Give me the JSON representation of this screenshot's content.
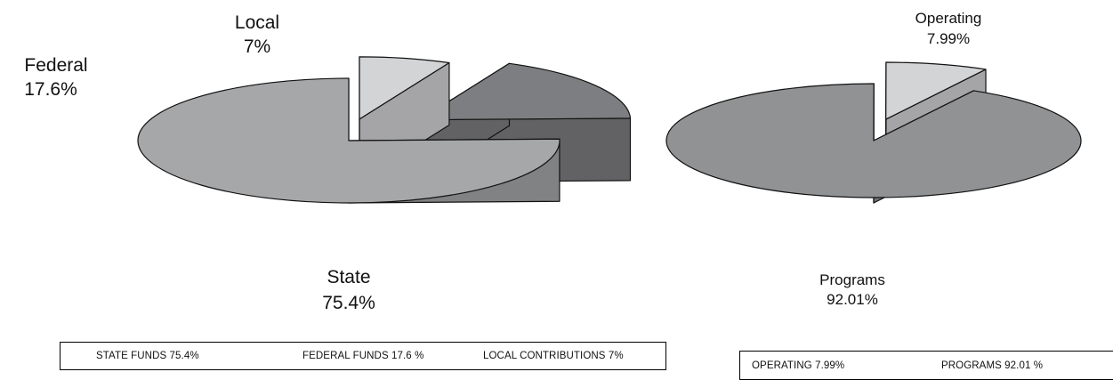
{
  "chart_data": [
    {
      "type": "pie",
      "style": "3d-exploded",
      "categories": [
        "State",
        "Federal",
        "Local"
      ],
      "values": [
        75.4,
        17.6,
        7
      ],
      "labels": [
        {
          "name": "State",
          "value": "75.4%"
        },
        {
          "name": "Federal",
          "value": "17.6%"
        },
        {
          "name": "Local",
          "value": "7%"
        }
      ],
      "legend": {
        "placement": "bottom",
        "items": [
          "STATE FUNDS 75.4%",
          "FEDERAL FUNDS 17.6 %",
          "LOCAL CONTRIBUTIONS  7%"
        ]
      },
      "colors": {
        "State": "#a6a7a9",
        "Federal": "#7d7e81",
        "Local": "#d3d4d6"
      }
    },
    {
      "type": "pie",
      "style": "3d-exploded",
      "categories": [
        "Operating",
        "Programs"
      ],
      "values": [
        7.99,
        92.01
      ],
      "labels": [
        {
          "name": "Operating",
          "value": "7.99%"
        },
        {
          "name": "Programs",
          "value": "92.01%"
        }
      ],
      "legend": {
        "placement": "bottom",
        "items": [
          "OPERATING  7.99%",
          "PROGRAMS  92.01 %"
        ]
      },
      "colors": {
        "Operating": "#d3d4d6",
        "Programs": "#919294"
      }
    }
  ]
}
